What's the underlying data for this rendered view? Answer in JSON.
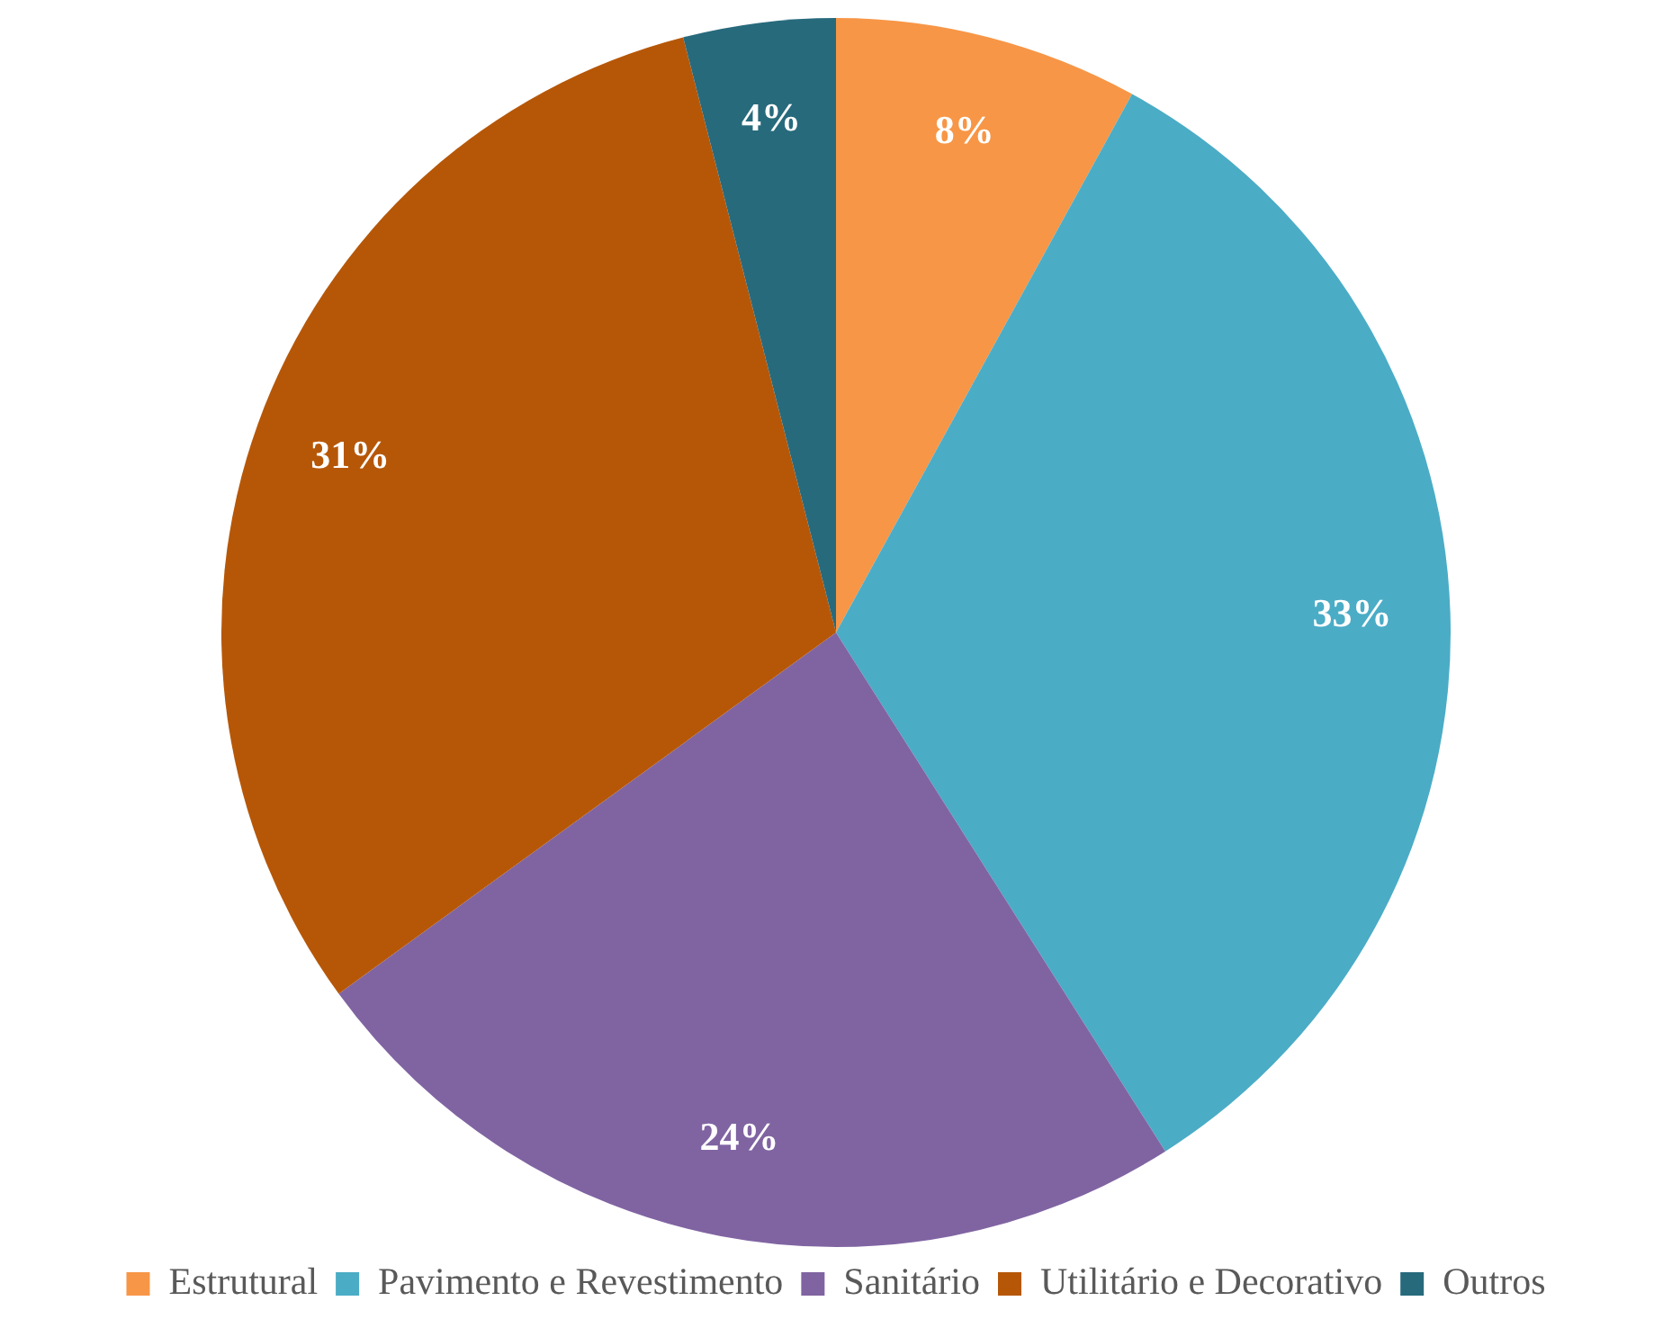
{
  "chart_data": {
    "type": "pie",
    "categories": [
      "Estrutural",
      "Pavimento e Revestimento",
      "Sanitário",
      "Utilitário e Decorativo",
      "Outros"
    ],
    "values": [
      8,
      33,
      24,
      31,
      4
    ],
    "value_labels": [
      "8%",
      "33%",
      "24%",
      "31%",
      "4%"
    ],
    "colors": [
      "#f79646",
      "#4bacc6",
      "#8064a2",
      "#b65708",
      "#276a7c"
    ],
    "legend": "bottom"
  }
}
